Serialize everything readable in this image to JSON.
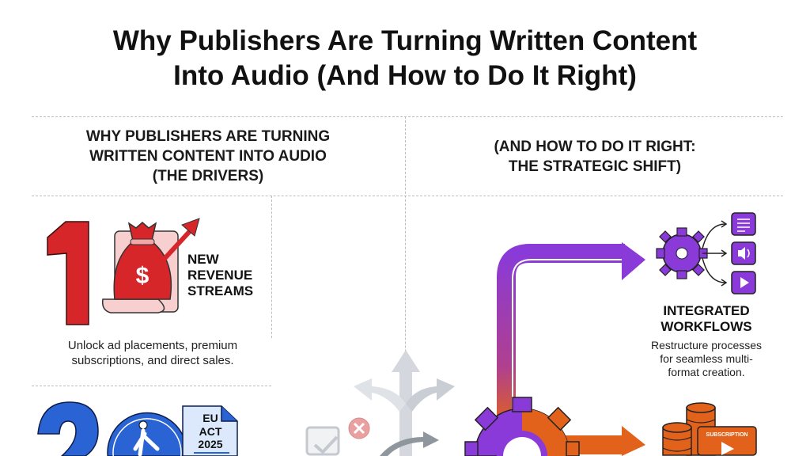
{
  "title": {
    "line1": "Why Publishers Are Turning Written Content",
    "line2": "Into Audio (And How to Do It Right)"
  },
  "left_header": {
    "line1": "WHY PUBLISHERS ARE TURNING",
    "line2": "WRITTEN CONTENT INTO AUDIO",
    "line3": "(THE DRIVERS)"
  },
  "right_header": {
    "line1": "(AND HOW TO DO IT RIGHT:",
    "line2": "THE STRATEGIC SHIFT)"
  },
  "drivers": [
    {
      "number": "1",
      "label": [
        "NEW",
        "REVENUE",
        "STREAMS"
      ],
      "description": [
        "Unlock ad placements, premium",
        "subscriptions, and direct sales."
      ],
      "icon": "money-bag-growth-icon",
      "color": "#d7262a"
    },
    {
      "number": "2",
      "icon": "accessibility-icon",
      "document": [
        "EU",
        "ACT",
        "2025"
      ],
      "color": "#2a63d4"
    }
  ],
  "strategies": [
    {
      "label": [
        "INTEGRATED",
        "WORKFLOWS"
      ],
      "description": [
        "Restructure processes",
        "for seamless multi-",
        "format creation."
      ],
      "icon": "gear-workflow-icon",
      "outputs": [
        "document-icon",
        "audio-icon",
        "play-icon"
      ],
      "color": "#8a3ad8"
    },
    {
      "badge": "SUBSCRIPTION",
      "icon": "database-subscription-icon",
      "color": "#e2621b"
    }
  ],
  "colors": {
    "red": "#d7262a",
    "blue": "#2a63d4",
    "purple": "#8a3ad8",
    "orange": "#e2621b",
    "gray": "#c4c9d0"
  }
}
